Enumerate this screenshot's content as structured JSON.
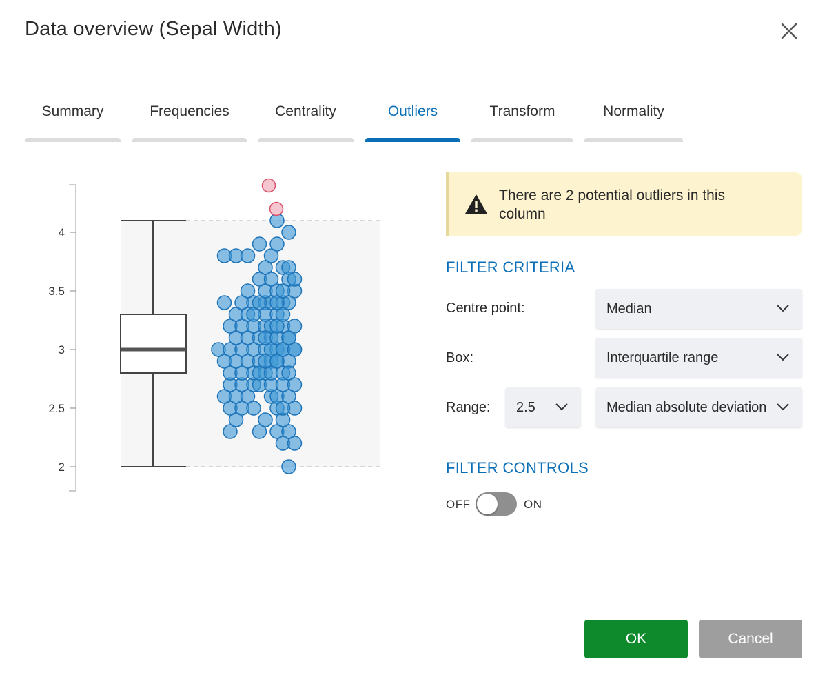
{
  "dialog": {
    "title": "Data overview (Sepal Width)",
    "close_icon": "close-icon"
  },
  "tabs": [
    {
      "label": "Summary",
      "active": false
    },
    {
      "label": "Frequencies",
      "active": false
    },
    {
      "label": "Centrality",
      "active": false
    },
    {
      "label": "Outliers",
      "active": true
    },
    {
      "label": "Transform",
      "active": false
    },
    {
      "label": "Normality",
      "active": false
    }
  ],
  "alert": {
    "icon": "warning-icon",
    "message": "There are 2 potential outliers in this column"
  },
  "filter_criteria": {
    "heading": "FILTER CRITERIA",
    "centre_label": "Centre point:",
    "centre_value": "Median",
    "box_label": "Box:",
    "box_value": "Interquartile range",
    "range_label": "Range:",
    "range_multiplier": "2.5",
    "range_method": "Median absolute deviation"
  },
  "filter_controls": {
    "heading": "FILTER CONTROLS",
    "off_label": "OFF",
    "on_label": "ON",
    "enabled": false
  },
  "buttons": {
    "ok": "OK",
    "cancel": "Cancel"
  },
  "colors": {
    "accent": "#0b6fb8",
    "ok": "#0e8a2c",
    "cancel": "#9e9e9e",
    "point": "#3d97d6",
    "outlier": "#f5c6cf"
  },
  "chart_data": {
    "type": "scatter",
    "ylim": [
      1.9,
      4.5
    ],
    "yticks": [
      "2",
      "2.5",
      "3",
      "3.5",
      "4"
    ],
    "box": {
      "min": 2.0,
      "q1": 2.8,
      "median": 3.0,
      "q3": 3.3,
      "max": 4.1
    },
    "outliers": [
      4.4,
      4.2
    ],
    "points": [
      [
        -6,
        2.3
      ],
      [
        -5,
        2.4
      ],
      [
        -6,
        2.5
      ],
      [
        -4,
        2.5
      ],
      [
        -7,
        2.6
      ],
      [
        -5,
        2.6
      ],
      [
        -3,
        2.6
      ],
      [
        -6,
        2.7
      ],
      [
        -4,
        2.7
      ],
      [
        -2,
        2.7
      ],
      [
        -6,
        2.8
      ],
      [
        -4,
        2.8
      ],
      [
        -2,
        2.8
      ],
      [
        0,
        2.8
      ],
      [
        -7,
        2.9
      ],
      [
        -5,
        2.9
      ],
      [
        -3,
        2.9
      ],
      [
        -1,
        2.9
      ],
      [
        1,
        2.9
      ],
      [
        -8,
        3.0
      ],
      [
        -6,
        3.0
      ],
      [
        -4,
        3.0
      ],
      [
        -2,
        3.0
      ],
      [
        0,
        3.0
      ],
      [
        2,
        3.0
      ],
      [
        -5,
        3.1
      ],
      [
        -3,
        3.1
      ],
      [
        -1,
        3.1
      ],
      [
        1,
        3.1
      ],
      [
        -6,
        3.2
      ],
      [
        -4,
        3.2
      ],
      [
        -2,
        3.2
      ],
      [
        0,
        3.2
      ],
      [
        -5,
        3.3
      ],
      [
        -3,
        3.3
      ],
      [
        -4,
        3.4
      ],
      [
        -2,
        3.4
      ],
      [
        0,
        3.4
      ],
      [
        -7,
        3.4
      ],
      [
        -3,
        3.5
      ],
      [
        -7,
        3.8
      ],
      [
        -5,
        3.8
      ],
      [
        -3,
        3.8
      ],
      [
        -1,
        3.9
      ],
      [
        -1,
        2.3
      ],
      [
        0,
        2.4
      ],
      [
        -2,
        2.5
      ],
      [
        2,
        2.5
      ],
      [
        1,
        2.6
      ],
      [
        -1,
        2.7
      ],
      [
        1,
        2.7
      ],
      [
        -1,
        2.8
      ],
      [
        1,
        2.8
      ],
      [
        3,
        2.8
      ],
      [
        0,
        2.9
      ],
      [
        2,
        2.9
      ],
      [
        4,
        2.9
      ],
      [
        1,
        3.0
      ],
      [
        3,
        3.0
      ],
      [
        5,
        3.0
      ],
      [
        0,
        3.1
      ],
      [
        2,
        3.1
      ],
      [
        4,
        3.1
      ],
      [
        1,
        3.2
      ],
      [
        3,
        3.2
      ],
      [
        0,
        3.3
      ],
      [
        2,
        3.3
      ],
      [
        -2,
        3.3
      ],
      [
        1,
        3.4
      ],
      [
        3,
        3.4
      ],
      [
        -1,
        3.4
      ],
      [
        0,
        3.5
      ],
      [
        2,
        3.5
      ],
      [
        -1,
        3.6
      ],
      [
        1,
        3.6
      ],
      [
        0,
        3.7
      ],
      [
        1,
        3.8
      ],
      [
        2,
        3.9
      ],
      [
        4,
        2.0
      ],
      [
        3,
        2.2
      ],
      [
        5,
        2.2
      ],
      [
        2,
        2.3
      ],
      [
        4,
        2.3
      ],
      [
        3,
        2.4
      ],
      [
        5,
        2.5
      ],
      [
        3,
        2.5
      ],
      [
        2,
        2.6
      ],
      [
        4,
        2.6
      ],
      [
        3,
        2.7
      ],
      [
        5,
        2.7
      ],
      [
        4,
        2.8
      ],
      [
        2,
        2.9
      ],
      [
        3,
        3.0
      ],
      [
        5,
        3.0
      ],
      [
        4,
        3.1
      ],
      [
        2,
        3.2
      ],
      [
        5,
        3.2
      ],
      [
        3,
        3.3
      ],
      [
        4,
        3.4
      ],
      [
        2,
        3.4
      ],
      [
        5,
        3.5
      ],
      [
        3,
        3.5
      ],
      [
        4,
        3.6
      ],
      [
        5,
        3.6
      ],
      [
        3,
        3.7
      ],
      [
        4,
        3.7
      ],
      [
        4,
        4.0
      ],
      [
        2,
        4.1
      ]
    ]
  }
}
